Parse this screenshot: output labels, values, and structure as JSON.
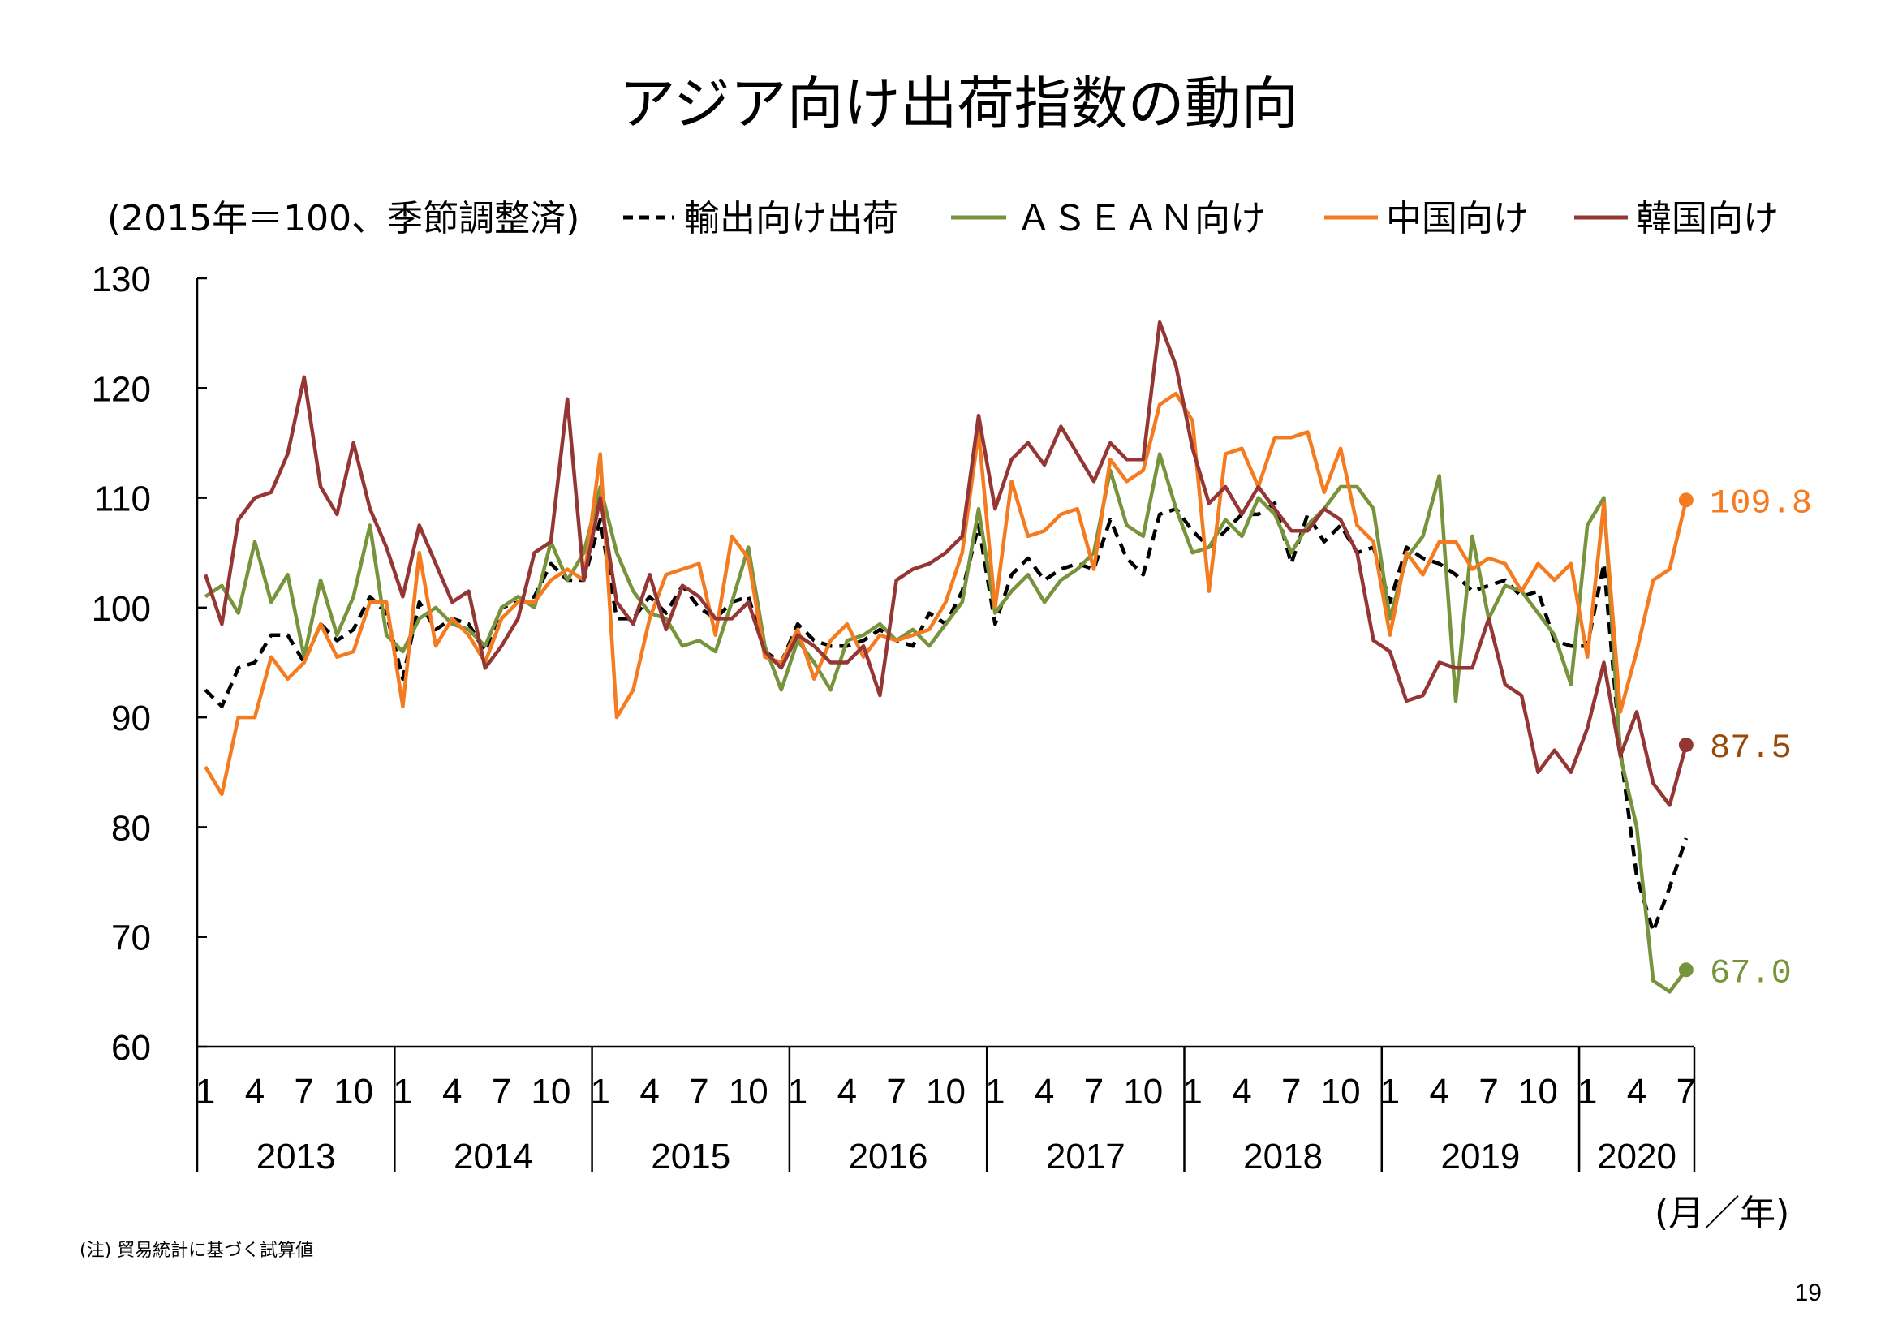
{
  "page": {
    "note": "(注) 貿易統計に基づく試算値",
    "page_number": "19"
  },
  "chart_data": {
    "type": "line",
    "title": "アジア向け出荷指数の動向",
    "ylabel": "(2015年＝100、季節調整済)",
    "xlabel": "(月／年)",
    "ylim": [
      60,
      130
    ],
    "yticks": [
      60,
      70,
      80,
      90,
      100,
      110,
      120,
      130
    ],
    "grid": false,
    "legend_position": "top",
    "x_month_ticks": [
      "1",
      "4",
      "7",
      "10"
    ],
    "years": [
      "2013",
      "2014",
      "2015",
      "2016",
      "2017",
      "2018",
      "2019",
      "2020"
    ],
    "series": [
      {
        "name": "輸出向け出荷",
        "color": "#000000",
        "line_style": "dashed",
        "values": [
          [
            92.5,
            91,
            94.5,
            95,
            97.5,
            97.5,
            95,
            98.5,
            97,
            98,
            101,
            99.5
          ],
          [
            93.5,
            100.5,
            98,
            99,
            98.5,
            96,
            100,
            100.5,
            101,
            104,
            102.5,
            102.5
          ],
          [
            108,
            99,
            99,
            101,
            99.5,
            102,
            100,
            99,
            100.5,
            101,
            96,
            95
          ],
          [
            98.5,
            97,
            96.5,
            96.5,
            97,
            98,
            97,
            96.5,
            99.5,
            98.5,
            101.5,
            107.5
          ],
          [
            98.5,
            103,
            104.5,
            102.5,
            103.5,
            104,
            103.5,
            108,
            104.5,
            103,
            108.5,
            109
          ],
          [
            107,
            105.5,
            107,
            108.5,
            108.5,
            109.5,
            104,
            108.5,
            106,
            107.5,
            105,
            105.5
          ],
          [
            100.5,
            105.5,
            104.5,
            104,
            103,
            101.5,
            102,
            102.5,
            101,
            101.5,
            97,
            96.5
          ],
          [
            96.5,
            104,
            87,
            75.5,
            70.5,
            74.5,
            79
          ]
        ]
      },
      {
        "name": "ＡＳＥＡＮ向け",
        "color": "#77933C",
        "line_style": "solid",
        "end_label": "67.0",
        "label_color": "#77933C",
        "values": [
          [
            101,
            102,
            99.5,
            106,
            100.5,
            103,
            95.5,
            102.5,
            97.5,
            101,
            107.5,
            97.5
          ],
          [
            96,
            99,
            100,
            98.5,
            98,
            96.5,
            100,
            101,
            100,
            106,
            102.5,
            105
          ],
          [
            111,
            105,
            101.5,
            99.5,
            99,
            96.5,
            97,
            96,
            100.5,
            105.5,
            96.5,
            92.5
          ],
          [
            97,
            95,
            92.5,
            97,
            97.5,
            98.5,
            97,
            98,
            96.5,
            98.5,
            100.5,
            109
          ],
          [
            99.5,
            101.5,
            103,
            100.5,
            102.5,
            103.5,
            105,
            112.5,
            107.5,
            106.5,
            114,
            109
          ],
          [
            105,
            105.5,
            108,
            106.5,
            110,
            108.5,
            105,
            107.5,
            109,
            111,
            111,
            109
          ],
          [
            99,
            104.5,
            106.5,
            112,
            91.5,
            106.5,
            99,
            102,
            101.5,
            99.5,
            97.5,
            93
          ],
          [
            107.5,
            110,
            86.5,
            80,
            66,
            65,
            67.0
          ]
        ]
      },
      {
        "name": "中国向け",
        "color": "#F47B20",
        "line_style": "solid",
        "end_label": "109.8",
        "label_color": "#F47B20",
        "values": [
          [
            85.5,
            83,
            90,
            90,
            95.5,
            93.5,
            95,
            98.5,
            95.5,
            96,
            100.5,
            100.5
          ],
          [
            91,
            105,
            96.5,
            99,
            97.5,
            95,
            99,
            100.5,
            100.5,
            102.5,
            103.5,
            102.5
          ],
          [
            114,
            90,
            92.5,
            99,
            103,
            103.5,
            104,
            97.5,
            106.5,
            104.5,
            95.5,
            95
          ],
          [
            98,
            93.5,
            97,
            98.5,
            95.5,
            97.5,
            97,
            97.5,
            98,
            100.5,
            105,
            116
          ],
          [
            100,
            111.5,
            106.5,
            107,
            108.5,
            109,
            103.5,
            113.5,
            111.5,
            112.5,
            118.5,
            119.5
          ],
          [
            117,
            101.5,
            114,
            114.5,
            111,
            115.5,
            115.5,
            116,
            110.5,
            114.5,
            107.5,
            106
          ],
          [
            97.5,
            105,
            103,
            106,
            106,
            103.5,
            104.5,
            104,
            101.5,
            104,
            102.5,
            104
          ],
          [
            95.5,
            109.5,
            90.5,
            96,
            102.5,
            103.5,
            109.8
          ]
        ]
      },
      {
        "name": "韓国向け",
        "color": "#943634",
        "line_style": "solid",
        "end_label": "87.5",
        "label_color": "#984807",
        "values": [
          [
            103,
            98.5,
            108,
            110,
            110.5,
            114,
            121,
            111,
            108.5,
            115,
            109,
            105.5
          ],
          [
            101,
            107.5,
            104,
            100.5,
            101.5,
            94.5,
            96.5,
            99,
            105,
            106,
            119,
            102.5
          ],
          [
            110,
            100.5,
            98.5,
            103,
            98,
            102,
            101,
            99,
            99,
            100.5,
            96,
            94.5
          ],
          [
            97.5,
            96.5,
            95,
            95,
            96.5,
            92,
            102.5,
            103.5,
            104,
            105,
            106.5,
            117.5
          ],
          [
            109,
            113.5,
            115,
            113,
            116.5,
            114,
            111.5,
            115,
            113.5,
            113.5,
            126,
            122
          ],
          [
            114.5,
            109.5,
            111,
            108.5,
            111,
            109,
            107,
            107,
            109,
            108,
            105,
            97
          ],
          [
            96,
            91.5,
            92,
            95,
            94.5,
            94.5,
            99,
            93,
            92,
            85,
            87,
            85
          ],
          [
            89,
            95,
            86.5,
            90.5,
            84,
            82,
            87.5
          ]
        ]
      }
    ]
  }
}
